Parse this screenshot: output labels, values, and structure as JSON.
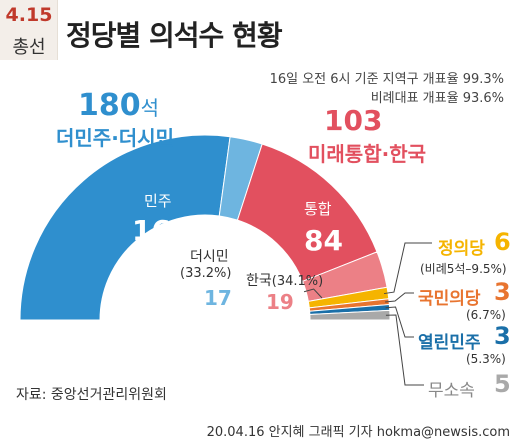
{
  "badge": {
    "date": "4.15",
    "label": "총선"
  },
  "title": "정당별 의석수 현황",
  "notes": [
    "16일 오전 6시 기준 지역구 개표율 99.3%",
    "비례대표 개표율 93.6%"
  ],
  "blocs": {
    "left": {
      "seats": "180",
      "unit": "석",
      "name": "더민주·더시민"
    },
    "right": {
      "seats": "103",
      "name": "미래통합·한국"
    }
  },
  "source": "자료: 중앙선거관리위원회",
  "credit": "20.04.16 안지혜 그래픽 기자 hokma@newsis.com",
  "colors": {
    "minju": "#2f8fce",
    "dsimin": "#6eb5e0",
    "tonghap": "#e2505f",
    "hanguk": "#ec8086",
    "jeongui": "#f5b400",
    "gukmin": "#e8742f",
    "yeolrin": "#1a6fa8",
    "musosok": "#a9a9a9"
  },
  "chart_data": {
    "type": "pie",
    "variant": "semi-donut (parliament)",
    "total": 300,
    "series": [
      {
        "key": "minju",
        "label": "민주",
        "value": 163,
        "color": "#2f8fce"
      },
      {
        "key": "dsimin",
        "label": "더시민",
        "value": 17,
        "detail": "(33.2%)",
        "color": "#6eb5e0"
      },
      {
        "key": "tonghap",
        "label": "통합",
        "value": 84,
        "color": "#e2505f"
      },
      {
        "key": "hanguk",
        "label": "한국",
        "value": 19,
        "detail": "(34.1%)",
        "color": "#ec8086"
      },
      {
        "key": "jeongui",
        "label": "정의당",
        "value": 6,
        "detail": "(비례5석–9.5%)",
        "color": "#f5b400"
      },
      {
        "key": "gukmin",
        "label": "국민의당",
        "value": 3,
        "detail": "(6.7%)",
        "color": "#e8742f"
      },
      {
        "key": "yeolrin",
        "label": "열린민주",
        "value": 3,
        "detail": "(5.3%)",
        "color": "#1a6fa8"
      },
      {
        "key": "musosok",
        "label": "무소속",
        "value": 5,
        "color": "#a9a9a9"
      }
    ]
  }
}
